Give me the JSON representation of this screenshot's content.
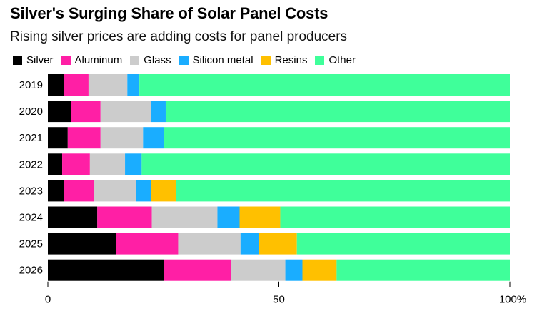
{
  "header": {
    "title": "Silver's Surging Share of Solar Panel Costs",
    "subtitle": "Rising silver prices are adding costs for panel producers"
  },
  "chart_data": {
    "type": "bar",
    "orientation": "horizontal",
    "stacked": true,
    "categories": [
      "2019",
      "2020",
      "2021",
      "2022",
      "2023",
      "2024",
      "2025",
      "2026"
    ],
    "series": [
      {
        "name": "Silver",
        "color": "#000000",
        "values": [
          3.4,
          5.1,
          4.3,
          3.1,
          3.4,
          10.7,
          14.8,
          25.1
        ]
      },
      {
        "name": "Aluminum",
        "color": "#ff1fa5",
        "values": [
          5.4,
          6.3,
          7.1,
          6.0,
          6.6,
          11.8,
          13.4,
          14.5
        ]
      },
      {
        "name": "Glass",
        "color": "#cccccc",
        "values": [
          8.4,
          11.0,
          9.2,
          7.6,
          9.1,
          14.2,
          13.5,
          11.8
        ]
      },
      {
        "name": "Silicon metal",
        "color": "#1aadff",
        "values": [
          2.6,
          3.1,
          4.5,
          3.6,
          3.3,
          4.8,
          3.9,
          3.7
        ]
      },
      {
        "name": "Resins",
        "color": "#ffc000",
        "values": [
          0,
          0,
          0,
          0,
          5.4,
          8.8,
          8.3,
          7.4
        ]
      },
      {
        "name": "Other",
        "color": "#3fff9a",
        "values": [
          80.2,
          74.5,
          74.9,
          79.7,
          72.2,
          49.7,
          46.1,
          37.5
        ]
      }
    ],
    "x_axis": {
      "ticks": [
        "0",
        "50",
        "100%"
      ],
      "tick_values": [
        0,
        50,
        100
      ],
      "range": [
        0,
        100
      ]
    },
    "legend": "top-left",
    "grid": false
  }
}
